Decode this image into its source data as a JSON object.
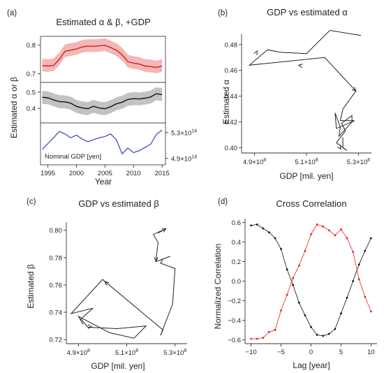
{
  "chart_data": [
    {
      "id": "a",
      "panel_label": "(a)",
      "type": "line",
      "title": "Estimated α & β, +GDP",
      "xlabel": "Year",
      "ylabel": "Estimated α or β",
      "xticks": [
        "1995",
        "2000",
        "2005",
        "2010",
        "2015"
      ],
      "xlim": [
        1993.7,
        2015.6
      ],
      "x": [
        1994,
        1995,
        1996,
        1997,
        1998,
        1999,
        2000,
        2001,
        2002,
        2003,
        2004,
        2005,
        2006,
        2007,
        2008,
        2009,
        2010,
        2011,
        2012,
        2013,
        2014,
        2015
      ],
      "subplots": [
        {
          "name": "alpha",
          "ylim": [
            0.67,
            0.83
          ],
          "yticks": [
            "0.7",
            "0.8"
          ],
          "color": "#cc2222",
          "band_color": "#f4b6b6",
          "mean": [
            0.728,
            0.727,
            0.729,
            0.75,
            0.778,
            0.782,
            0.786,
            0.793,
            0.796,
            0.795,
            0.797,
            0.799,
            0.791,
            0.782,
            0.766,
            0.742,
            0.737,
            0.734,
            0.727,
            0.725,
            0.722,
            0.727
          ],
          "lower": [
            0.708,
            0.707,
            0.709,
            0.73,
            0.758,
            0.762,
            0.766,
            0.773,
            0.776,
            0.775,
            0.777,
            0.779,
            0.771,
            0.762,
            0.746,
            0.722,
            0.717,
            0.714,
            0.707,
            0.705,
            0.702,
            0.707
          ],
          "upper": [
            0.752,
            0.751,
            0.753,
            0.774,
            0.802,
            0.806,
            0.81,
            0.817,
            0.82,
            0.819,
            0.821,
            0.823,
            0.815,
            0.806,
            0.79,
            0.766,
            0.761,
            0.758,
            0.751,
            0.749,
            0.746,
            0.751
          ]
        },
        {
          "name": "beta",
          "ylim": [
            0.31,
            0.56
          ],
          "yticks": [
            "0.4",
            "0.5"
          ],
          "color": "#111111",
          "band_color": "#c2c2c2",
          "mean": [
            0.468,
            0.465,
            0.452,
            0.442,
            0.44,
            0.432,
            0.412,
            0.403,
            0.398,
            0.413,
            0.402,
            0.398,
            0.41,
            0.428,
            0.438,
            0.455,
            0.46,
            0.458,
            0.463,
            0.47,
            0.49,
            0.485
          ],
          "lower": [
            0.428,
            0.425,
            0.412,
            0.402,
            0.4,
            0.392,
            0.372,
            0.363,
            0.358,
            0.373,
            0.362,
            0.358,
            0.37,
            0.388,
            0.398,
            0.415,
            0.42,
            0.418,
            0.423,
            0.43,
            0.45,
            0.445
          ],
          "upper": [
            0.508,
            0.505,
            0.492,
            0.482,
            0.48,
            0.472,
            0.452,
            0.443,
            0.438,
            0.453,
            0.442,
            0.438,
            0.45,
            0.468,
            0.478,
            0.495,
            0.5,
            0.498,
            0.503,
            0.51,
            0.53,
            0.525
          ]
        },
        {
          "name": "gdp",
          "label": "Nominal GDP [yen]",
          "ylim": [
            4.8,
            5.45
          ],
          "yticks_right": [
            "5.3",
            "4.9"
          ],
          "ytick_values": [
            5.3,
            4.9
          ],
          "ytick_exponent": "14",
          "color": "#2233bb",
          "values": [
            5.04,
            5.13,
            5.22,
            5.32,
            5.28,
            5.22,
            5.26,
            5.2,
            5.16,
            5.19,
            5.22,
            5.24,
            5.28,
            5.19,
            4.97,
            5.06,
            4.99,
            5.02,
            5.07,
            5.12,
            5.27,
            5.34
          ]
        }
      ]
    },
    {
      "id": "b",
      "panel_label": "(b)",
      "type": "line",
      "title": "GDP vs estimated α",
      "xlabel": "GDP [mil. yen]",
      "ylabel": "Estimated α",
      "xlim": [
        4.85,
        5.35
      ],
      "ylim": [
        0.396,
        0.488
      ],
      "xticks": [
        {
          "value": 4.9,
          "mant": "4.9"
        },
        {
          "value": 5.1,
          "mant": "5.1"
        },
        {
          "value": 5.3,
          "mant": "5.3"
        }
      ],
      "xtick_exponent": "8",
      "yticks": [
        0.4,
        0.42,
        0.44,
        0.46,
        0.48
      ],
      "ytick_labels": [
        "0.40",
        "0.42",
        "0.44",
        "0.46",
        "0.48"
      ],
      "x": [
        5.31,
        5.19,
        5.1,
        5.0,
        4.95,
        4.88,
        5.17,
        5.29,
        5.24,
        5.23,
        5.285,
        5.215,
        5.21,
        5.23,
        5.225,
        5.275,
        5.275,
        5.235,
        5.25,
        5.215,
        5.255,
        5.24,
        5.24
      ],
      "y": [
        0.487,
        0.491,
        0.473,
        0.474,
        0.476,
        0.464,
        0.47,
        0.444,
        0.43,
        0.421,
        0.421,
        0.415,
        0.427,
        0.416,
        0.409,
        0.42,
        0.425,
        0.419,
        0.413,
        0.404,
        0.398,
        0.4,
        0.408
      ],
      "arrows": [
        {
          "from": [
            4.88,
            0.464
          ],
          "to": [
            4.91,
            0.475
          ]
        },
        {
          "from": [
            5.1,
            0.463
          ],
          "to": [
            5.07,
            0.464
          ]
        },
        {
          "from": [
            5.27,
            0.448
          ],
          "to": [
            5.29,
            0.444
          ]
        },
        {
          "from": [
            5.215,
            0.404
          ],
          "to": [
            5.232,
            0.399
          ]
        }
      ],
      "color": "#222222"
    },
    {
      "id": "c",
      "panel_label": "(c)",
      "type": "line",
      "title": "GDP vs estimated β",
      "xlabel": "GDP [mil. yen]",
      "ylabel": "Estimated β",
      "xlim": [
        4.85,
        5.35
      ],
      "ylim": [
        0.717,
        0.806
      ],
      "xticks": [
        {
          "value": 4.9,
          "mant": "4.9"
        },
        {
          "value": 5.1,
          "mant": "5.1"
        },
        {
          "value": 5.3,
          "mant": "5.3"
        }
      ],
      "xtick_exponent": "8",
      "yticks": [
        0.72,
        0.74,
        0.76,
        0.78,
        0.8
      ],
      "ytick_labels": [
        "0.72",
        "0.74",
        "0.76",
        "0.78",
        "0.80"
      ],
      "x": [
        5.23,
        5.26,
        5.21,
        5.23,
        5.22,
        5.28,
        5.25,
        5.24,
        5.3,
        5.29,
        5.24,
        5.25,
        5.0,
        4.87,
        4.96,
        4.91,
        4.94,
        5.06,
        5.18,
        5.13,
        5.03,
        4.9,
        4.92
      ],
      "y": [
        0.798,
        0.801,
        0.797,
        0.791,
        0.777,
        0.781,
        0.779,
        0.776,
        0.772,
        0.746,
        0.723,
        0.727,
        0.764,
        0.739,
        0.743,
        0.735,
        0.729,
        0.728,
        0.73,
        0.721,
        0.725,
        0.737,
        0.731
      ],
      "arrows": [
        {
          "from": [
            5.24,
            0.799
          ],
          "to": [
            5.262,
            0.8012
          ]
        },
        {
          "from": [
            5.22,
            0.7835
          ],
          "to": [
            5.222,
            0.7775
          ]
        },
        {
          "from": [
            5.03,
            0.7595
          ],
          "to": [
            5.01,
            0.7624
          ]
        },
        {
          "from": [
            4.935,
            0.7296
          ],
          "to": [
            4.955,
            0.7292
          ]
        }
      ],
      "color": "#222222"
    },
    {
      "id": "d",
      "panel_label": "(d)",
      "type": "line",
      "title": "Cross Correlation",
      "xlabel": "Lag [year]",
      "ylabel": "Normalized Correlation",
      "xlim": [
        -11,
        11
      ],
      "ylim": [
        -0.64,
        0.64
      ],
      "xticks": [
        -10,
        -5,
        0,
        5,
        10
      ],
      "xtick_labels": [
        "−10",
        "−5",
        "0",
        "5",
        "10"
      ],
      "yticks": [
        -0.6,
        -0.4,
        -0.2,
        0.0,
        0.2,
        0.4,
        0.6
      ],
      "ytick_labels": [
        "−0.6",
        "−0.4",
        "−0.2",
        "0.0",
        "0.2",
        "0.4",
        "0.6"
      ],
      "x": [
        -10,
        -9,
        -8,
        -7,
        -6,
        -5,
        -4,
        -3,
        -2,
        -1,
        0,
        1,
        2,
        3,
        4,
        5,
        6,
        7,
        8,
        9,
        10
      ],
      "series": [
        {
          "color": "#111111",
          "values": [
            0.57,
            0.58,
            0.54,
            0.5,
            0.44,
            0.33,
            0.12,
            -0.04,
            -0.22,
            -0.35,
            -0.47,
            -0.55,
            -0.56,
            -0.54,
            -0.49,
            -0.33,
            -0.17,
            0.0,
            0.17,
            0.31,
            0.44
          ]
        },
        {
          "color": "#e02020",
          "values": [
            -0.59,
            -0.59,
            -0.58,
            -0.52,
            -0.5,
            -0.3,
            -0.14,
            0.03,
            0.16,
            0.31,
            0.48,
            0.58,
            0.56,
            0.52,
            0.47,
            0.53,
            0.44,
            0.3,
            0.02,
            -0.16,
            -0.31
          ]
        }
      ]
    }
  ]
}
